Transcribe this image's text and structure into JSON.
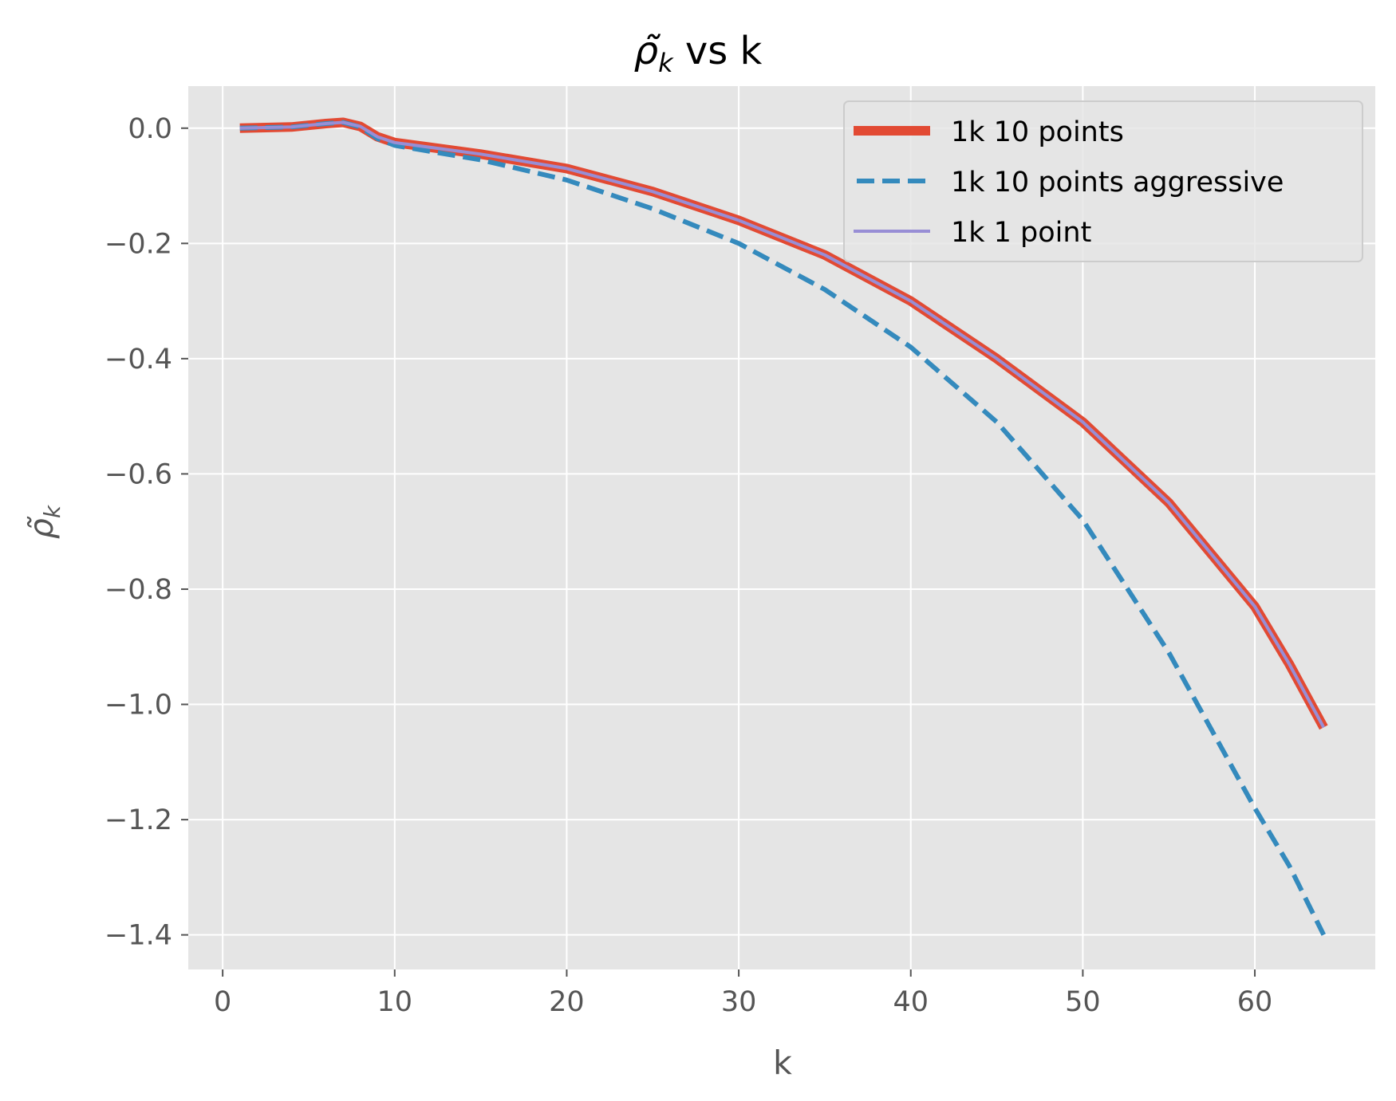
{
  "chart_data": {
    "type": "line",
    "title": "ρ̃_k vs k",
    "title_main": "ρ̃",
    "title_sub": "k",
    "title_rest": " vs k",
    "xlabel": "k",
    "ylabel_main": "ρ̃",
    "ylabel_sub": "k",
    "xlim": [
      -2,
      67
    ],
    "ylim": [
      -1.46,
      0.073
    ],
    "x_ticks": [
      0,
      10,
      20,
      30,
      40,
      50,
      60
    ],
    "y_ticks": [
      0.0,
      -0.2,
      -0.4,
      -0.6,
      -0.8,
      -1.0,
      -1.2,
      -1.4
    ],
    "x_tick_labels": [
      "0",
      "10",
      "20",
      "30",
      "40",
      "50",
      "60"
    ],
    "y_tick_labels": [
      "0.0",
      "−0.2",
      "−0.4",
      "−0.6",
      "−0.8",
      "−1.0",
      "−1.2",
      "−1.4"
    ],
    "grid": true,
    "legend_position": "top-right",
    "x": [
      1,
      4,
      6,
      7,
      8,
      9,
      10,
      12,
      15,
      20,
      25,
      30,
      35,
      40,
      45,
      50,
      55,
      60,
      62,
      64
    ],
    "series": [
      {
        "name": "1k 10 points",
        "color": "#E24A33",
        "style": "solid",
        "values": [
          0.0,
          0.002,
          0.008,
          0.01,
          0.003,
          -0.015,
          -0.025,
          -0.033,
          -0.045,
          -0.07,
          -0.11,
          -0.16,
          -0.22,
          -0.3,
          -0.4,
          -0.51,
          -0.65,
          -0.83,
          -0.93,
          -1.04
        ]
      },
      {
        "name": "1k 10 points aggressive",
        "color": "#348ABD",
        "style": "dashed",
        "values": [
          0.0,
          0.002,
          0.008,
          0.01,
          0.002,
          -0.018,
          -0.03,
          -0.04,
          -0.055,
          -0.09,
          -0.14,
          -0.2,
          -0.28,
          -0.38,
          -0.51,
          -0.68,
          -0.91,
          -1.18,
          -1.28,
          -1.4
        ]
      },
      {
        "name": "1k 1 point",
        "color": "#988ED5",
        "style": "solid",
        "values": [
          0.0,
          0.002,
          0.008,
          0.01,
          0.003,
          -0.015,
          -0.025,
          -0.033,
          -0.045,
          -0.07,
          -0.11,
          -0.16,
          -0.22,
          -0.3,
          -0.4,
          -0.51,
          -0.65,
          -0.83,
          -0.93,
          -1.04
        ]
      }
    ],
    "colors": {
      "plot_background": "#E5E5E5",
      "grid": "#FFFFFF",
      "tick_label": "#555555"
    }
  }
}
